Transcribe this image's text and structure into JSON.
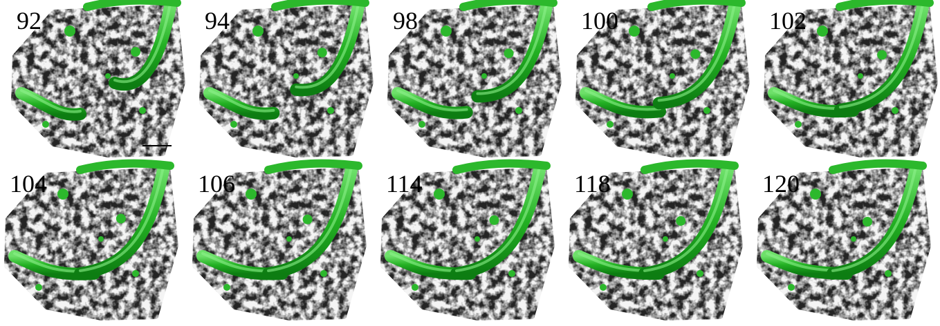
{
  "panels": [
    {
      "label": "92"
    },
    {
      "label": "94"
    },
    {
      "label": "98"
    },
    {
      "label": "100"
    },
    {
      "label": "102"
    },
    {
      "label": "104"
    },
    {
      "label": "106"
    },
    {
      "label": "114"
    },
    {
      "label": "118"
    },
    {
      "label": "120"
    }
  ]
}
